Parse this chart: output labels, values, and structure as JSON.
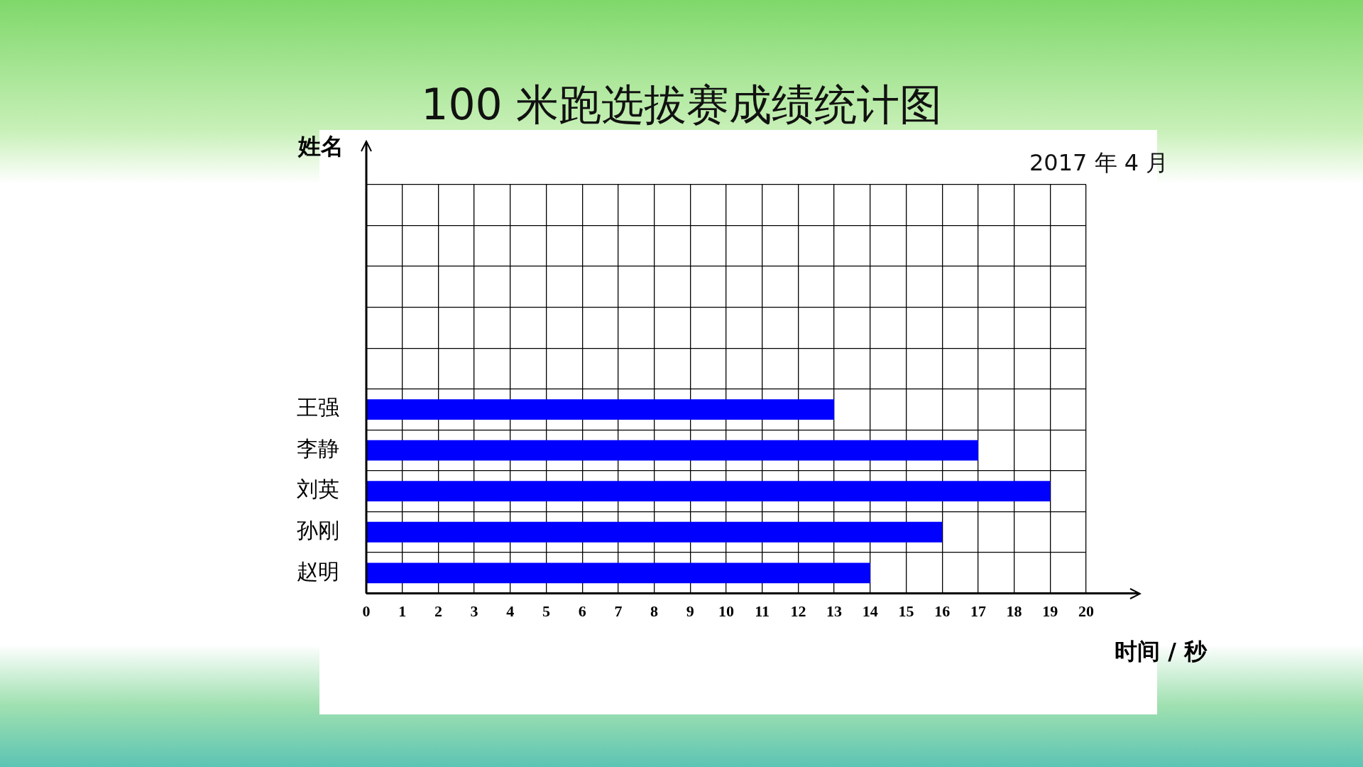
{
  "chart_data": {
    "type": "bar",
    "orientation": "horizontal",
    "title": "100 米跑选拔赛成绩统计图",
    "subtitle": "2017 年 4 月",
    "ylabel": "姓名",
    "xlabel": "时间 / 秒",
    "categories": [
      null,
      null,
      null,
      null,
      null,
      "王强",
      "李静",
      "刘英",
      "孙刚",
      "赵明"
    ],
    "values": [
      null,
      null,
      null,
      null,
      null,
      13,
      17,
      19,
      16,
      14
    ],
    "color": "#0000ff",
    "xlim": [
      0,
      20
    ],
    "xticks": [
      0,
      1,
      2,
      3,
      4,
      5,
      6,
      7,
      8,
      9,
      10,
      11,
      12,
      13,
      14,
      15,
      16,
      17,
      18,
      19,
      20
    ],
    "grid": true
  }
}
